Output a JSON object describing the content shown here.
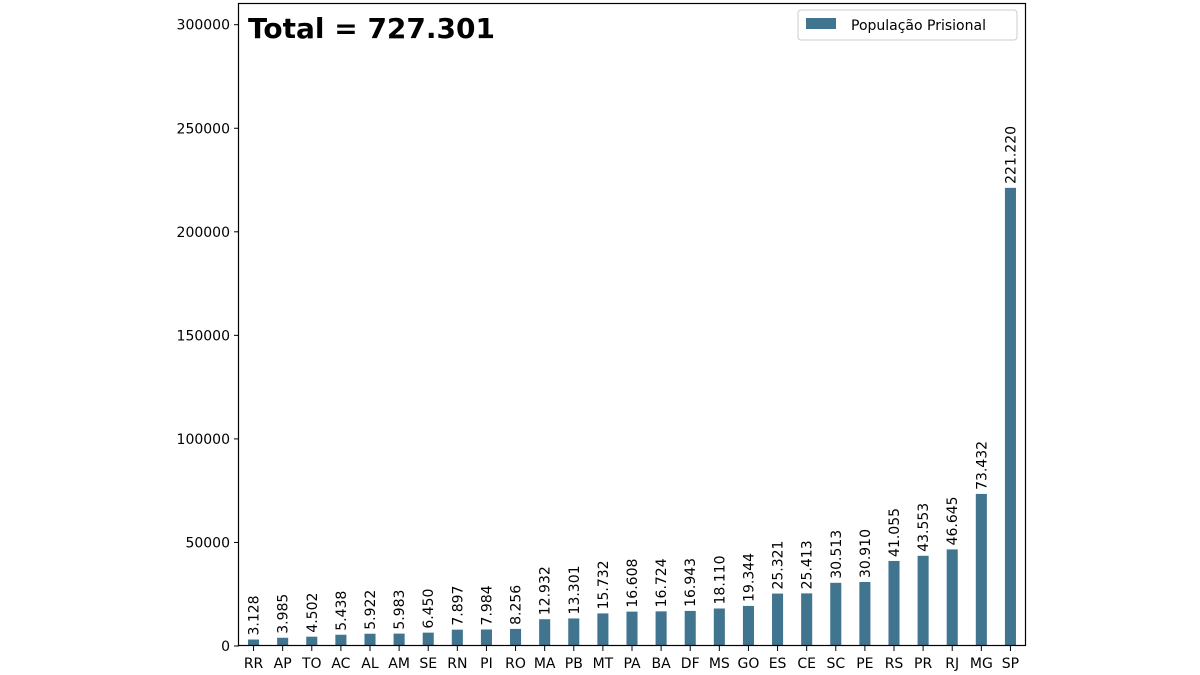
{
  "annotation": "Total = 727.301",
  "legend_label": "População Prisional",
  "colors": {
    "bar": "#41748f",
    "axis": "#000000",
    "legend_border": "#cccccc"
  },
  "chart_data": {
    "type": "bar",
    "title": "",
    "xlabel": "",
    "ylabel": "",
    "ylim": [
      0,
      300000
    ],
    "yticks": [
      0,
      50000,
      100000,
      150000,
      200000,
      250000,
      300000
    ],
    "grid": false,
    "legend_position": "top-right",
    "categories": [
      "RR",
      "AP",
      "TO",
      "AC",
      "AL",
      "AM",
      "SE",
      "RN",
      "PI",
      "RO",
      "MA",
      "PB",
      "MT",
      "PA",
      "BA",
      "DF",
      "MS",
      "GO",
      "ES",
      "CE",
      "SC",
      "PE",
      "RS",
      "PR",
      "RJ",
      "MG",
      "SP"
    ],
    "series": [
      {
        "name": "População Prisional",
        "values": [
          3128,
          3985,
          4502,
          5438,
          5922,
          5983,
          6450,
          7897,
          7984,
          8256,
          12932,
          13301,
          15732,
          16608,
          16724,
          16943,
          18110,
          19344,
          25321,
          25413,
          30513,
          30910,
          41055,
          43553,
          46645,
          73432,
          221220
        ],
        "value_labels": [
          "3.128",
          "3.985",
          "4.502",
          "5.438",
          "5.922",
          "5.983",
          "6.450",
          "7.897",
          "7.984",
          "8.256",
          "12.932",
          "13.301",
          "15.732",
          "16.608",
          "16.724",
          "16.943",
          "18.110",
          "19.344",
          "25.321",
          "25.413",
          "30.513",
          "30.910",
          "41.055",
          "43.553",
          "46.645",
          "73.432",
          "221.220"
        ]
      }
    ]
  }
}
